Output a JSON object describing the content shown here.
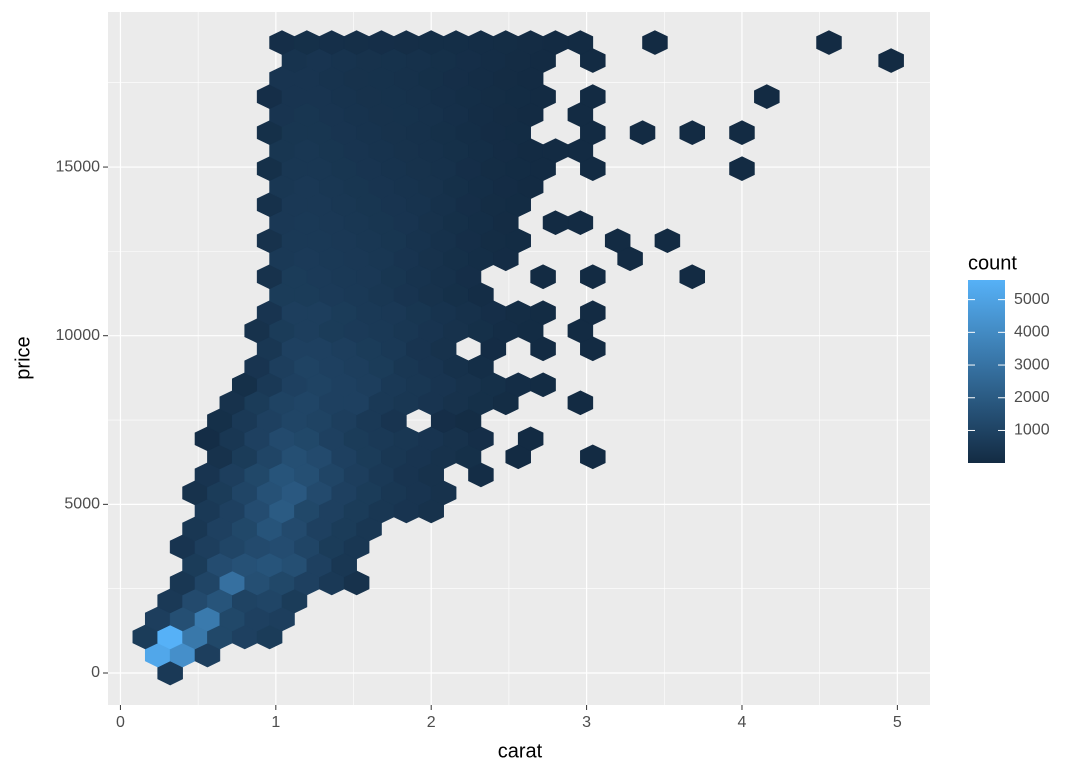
{
  "chart_data": {
    "type": "hexbin",
    "x_label": "carat",
    "y_label": "price",
    "legend_title": "count",
    "xlim": [
      -0.08,
      5.21
    ],
    "ylim": [
      -949,
      19597
    ],
    "xticks": [
      0,
      1,
      2,
      3,
      4,
      5
    ],
    "yticks": [
      0,
      5000,
      10000,
      15000
    ],
    "fill_ticks": [
      1000,
      2000,
      3000,
      4000,
      5000
    ],
    "colors": [
      "#132B43",
      "#56B1F7"
    ],
    "grid": true,
    "rows": [
      {
        "y": 0,
        "x": [
          0.32
        ],
        "values": [
          600
        ]
      },
      {
        "y": 534,
        "x": [
          0.24,
          0.4,
          0.56
        ],
        "values": [
          5200,
          4200,
          800
        ]
      },
      {
        "y": 1068,
        "x": [
          0.16,
          0.32,
          0.48,
          0.64,
          0.8,
          0.96
        ],
        "values": [
          700,
          5600,
          3200,
          1200,
          900,
          700
        ]
      },
      {
        "y": 1602,
        "x": [
          0.24,
          0.4,
          0.56,
          0.72,
          0.88,
          1.04
        ],
        "values": [
          800,
          1500,
          3300,
          1200,
          900,
          800
        ]
      },
      {
        "y": 2136,
        "x": [
          0.32,
          0.48,
          0.64,
          0.8,
          0.96,
          1.12
        ],
        "values": [
          600,
          1300,
          1700,
          1000,
          1100,
          700
        ]
      },
      {
        "y": 2670,
        "x": [
          0.4,
          0.56,
          0.72,
          0.88,
          1.04,
          1.2,
          1.36,
          1.52
        ],
        "values": [
          500,
          1100,
          2900,
          1500,
          1200,
          900,
          600,
          300
        ]
      },
      {
        "y": 3204,
        "x": [
          0.48,
          0.64,
          0.8,
          0.96,
          1.12,
          1.28,
          1.44
        ],
        "values": [
          700,
          1400,
          1600,
          1700,
          1500,
          900,
          500
        ]
      },
      {
        "y": 3738,
        "x": [
          0.4,
          0.56,
          0.72,
          0.88,
          1.04,
          1.2,
          1.36,
          1.52
        ],
        "values": [
          400,
          800,
          1100,
          1300,
          1400,
          1100,
          700,
          500
        ]
      },
      {
        "y": 4272,
        "x": [
          0.48,
          0.64,
          0.8,
          0.96,
          1.12,
          1.28,
          1.44,
          1.6
        ],
        "values": [
          500,
          900,
          1200,
          1700,
          1300,
          900,
          700,
          500
        ]
      },
      {
        "y": 4806,
        "x": [
          0.56,
          0.72,
          0.88,
          1.04,
          1.2,
          1.36,
          1.52,
          1.68,
          1.84,
          2.0
        ],
        "values": [
          600,
          900,
          1400,
          2000,
          1200,
          900,
          700,
          500,
          400,
          300
        ]
      },
      {
        "y": 5340,
        "x": [
          0.48,
          0.64,
          0.8,
          0.96,
          1.12,
          1.28,
          1.44,
          1.6,
          1.76,
          1.92,
          2.08
        ],
        "values": [
          300,
          700,
          1100,
          1600,
          1900,
          1300,
          900,
          700,
          500,
          400,
          300
        ]
      },
      {
        "y": 5874,
        "x": [
          0.56,
          0.72,
          0.88,
          1.04,
          1.2,
          1.36,
          1.52,
          1.68,
          1.84,
          2.0,
          2.32
        ],
        "values": [
          400,
          800,
          1200,
          1700,
          1500,
          1100,
          800,
          600,
          400,
          300,
          100
        ]
      },
      {
        "y": 6408,
        "x": [
          0.64,
          0.8,
          0.96,
          1.12,
          1.28,
          1.44,
          1.6,
          1.76,
          1.92,
          2.08,
          2.24,
          2.56,
          3.04
        ],
        "values": [
          300,
          700,
          1100,
          1500,
          1300,
          900,
          700,
          500,
          400,
          300,
          200,
          20,
          5
        ]
      },
      {
        "y": 6942,
        "x": [
          0.56,
          0.72,
          0.88,
          1.04,
          1.2,
          1.36,
          1.52,
          1.68,
          1.84,
          2.0,
          2.16,
          2.32,
          2.64
        ],
        "values": [
          100,
          500,
          900,
          1300,
          1200,
          900,
          700,
          600,
          500,
          400,
          300,
          150,
          20
        ]
      },
      {
        "y": 7476,
        "x": [
          0.64,
          0.8,
          0.96,
          1.12,
          1.28,
          1.44,
          1.6,
          1.76,
          2.08,
          2.24
        ],
        "values": [
          200,
          600,
          900,
          1100,
          1000,
          800,
          600,
          400,
          150,
          80
        ]
      },
      {
        "y": 8010,
        "x": [
          0.72,
          0.88,
          1.04,
          1.2,
          1.36,
          1.52,
          1.68,
          1.84,
          2.0,
          2.16,
          2.32,
          2.48,
          2.96
        ],
        "values": [
          300,
          700,
          1000,
          1100,
          900,
          900,
          600,
          500,
          400,
          300,
          200,
          80,
          10
        ]
      },
      {
        "y": 8544,
        "x": [
          0.8,
          0.96,
          1.12,
          1.28,
          1.44,
          1.6,
          1.76,
          1.92,
          2.08,
          2.24,
          2.4,
          2.56,
          2.72
        ],
        "values": [
          200,
          600,
          900,
          1000,
          900,
          800,
          600,
          500,
          400,
          300,
          200,
          100,
          30
        ]
      },
      {
        "y": 9078,
        "x": [
          0.88,
          1.04,
          1.2,
          1.36,
          1.52,
          1.68,
          1.84,
          2.0,
          2.16,
          2.32
        ],
        "values": [
          400,
          800,
          1000,
          900,
          800,
          700,
          500,
          400,
          250,
          120
        ]
      },
      {
        "y": 9612,
        "x": [
          0.96,
          1.12,
          1.28,
          1.44,
          1.6,
          1.76,
          1.92,
          2.08,
          2.4,
          2.72,
          3.04
        ],
        "values": [
          500,
          900,
          900,
          800,
          700,
          600,
          400,
          300,
          60,
          20,
          10
        ]
      },
      {
        "y": 10146,
        "x": [
          0.88,
          1.04,
          1.2,
          1.36,
          1.52,
          1.68,
          1.84,
          2.0,
          2.16,
          2.32,
          2.48,
          2.64,
          2.96
        ],
        "values": [
          300,
          700,
          800,
          700,
          650,
          600,
          500,
          400,
          300,
          200,
          100,
          40,
          10
        ]
      },
      {
        "y": 10680,
        "x": [
          0.96,
          1.12,
          1.28,
          1.44,
          1.6,
          1.76,
          1.92,
          2.08,
          2.24,
          2.4,
          2.56,
          2.72,
          3.04
        ],
        "values": [
          400,
          800,
          800,
          700,
          600,
          550,
          450,
          350,
          250,
          150,
          80,
          40,
          10
        ]
      },
      {
        "y": 11214,
        "x": [
          1.04,
          1.2,
          1.36,
          1.52,
          1.68,
          1.84,
          2.0,
          2.16,
          2.32
        ],
        "values": [
          700,
          700,
          650,
          600,
          500,
          400,
          300,
          200,
          100
        ]
      },
      {
        "y": 11748,
        "x": [
          0.96,
          1.12,
          1.28,
          1.44,
          1.6,
          1.76,
          1.92,
          2.08,
          2.24,
          2.72,
          3.04,
          3.68
        ],
        "values": [
          300,
          700,
          650,
          600,
          550,
          450,
          350,
          250,
          150,
          20,
          10,
          5
        ]
      },
      {
        "y": 12282,
        "x": [
          1.04,
          1.2,
          1.36,
          1.52,
          1.68,
          1.84,
          2.0,
          2.16,
          2.32,
          2.48,
          3.28
        ],
        "values": [
          600,
          650,
          600,
          550,
          500,
          400,
          300,
          200,
          120,
          60,
          5
        ]
      },
      {
        "y": 12816,
        "x": [
          0.96,
          1.12,
          1.28,
          1.44,
          1.6,
          1.76,
          1.92,
          2.08,
          2.24,
          2.4,
          2.56,
          3.2,
          3.52
        ],
        "values": [
          300,
          600,
          600,
          550,
          500,
          450,
          350,
          250,
          150,
          80,
          40,
          5,
          5
        ]
      },
      {
        "y": 13350,
        "x": [
          1.04,
          1.2,
          1.36,
          1.52,
          1.68,
          1.84,
          2.0,
          2.16,
          2.32,
          2.48,
          2.8,
          2.96
        ],
        "values": [
          550,
          600,
          550,
          500,
          450,
          400,
          300,
          200,
          120,
          50,
          15,
          10
        ]
      },
      {
        "y": 13884,
        "x": [
          0.96,
          1.12,
          1.28,
          1.44,
          1.6,
          1.76,
          1.92,
          2.08,
          2.24,
          2.4,
          2.56
        ],
        "values": [
          250,
          550,
          550,
          500,
          450,
          400,
          350,
          250,
          150,
          80,
          40
        ]
      },
      {
        "y": 14418,
        "x": [
          1.04,
          1.2,
          1.36,
          1.52,
          1.68,
          1.84,
          2.0,
          2.16,
          2.32,
          2.48,
          2.64
        ],
        "values": [
          500,
          550,
          500,
          450,
          400,
          350,
          300,
          200,
          120,
          60,
          20
        ]
      },
      {
        "y": 14952,
        "x": [
          0.96,
          1.12,
          1.28,
          1.44,
          1.6,
          1.76,
          1.92,
          2.08,
          2.24,
          2.4,
          2.56,
          2.72,
          3.04,
          4.0
        ],
        "values": [
          200,
          500,
          500,
          450,
          400,
          350,
          300,
          250,
          150,
          80,
          40,
          20,
          10,
          5
        ]
      },
      {
        "y": 15486,
        "x": [
          1.04,
          1.2,
          1.36,
          1.52,
          1.68,
          1.84,
          2.0,
          2.16,
          2.32,
          2.48,
          2.64,
          2.8,
          2.96
        ],
        "values": [
          450,
          500,
          450,
          400,
          350,
          300,
          250,
          200,
          120,
          60,
          20,
          15,
          10
        ]
      },
      {
        "y": 16020,
        "x": [
          0.96,
          1.12,
          1.28,
          1.44,
          1.6,
          1.76,
          1.92,
          2.08,
          2.24,
          2.4,
          2.56,
          3.04,
          3.36,
          3.68,
          4.0
        ],
        "values": [
          200,
          450,
          450,
          400,
          350,
          300,
          250,
          200,
          120,
          60,
          30,
          10,
          5,
          5,
          5
        ]
      },
      {
        "y": 16554,
        "x": [
          1.04,
          1.2,
          1.36,
          1.52,
          1.68,
          1.84,
          2.0,
          2.16,
          2.32,
          2.48,
          2.64,
          2.96
        ],
        "values": [
          400,
          450,
          400,
          350,
          300,
          280,
          250,
          180,
          100,
          50,
          20,
          10
        ]
      },
      {
        "y": 17088,
        "x": [
          0.96,
          1.12,
          1.28,
          1.44,
          1.6,
          1.76,
          1.92,
          2.08,
          2.24,
          2.4,
          2.56,
          2.72,
          3.04,
          4.16
        ],
        "values": [
          150,
          400,
          400,
          350,
          300,
          280,
          250,
          180,
          120,
          70,
          40,
          20,
          10,
          5
        ]
      },
      {
        "y": 17622,
        "x": [
          1.04,
          1.2,
          1.36,
          1.52,
          1.68,
          1.84,
          2.0,
          2.16,
          2.32,
          2.48,
          2.64
        ],
        "values": [
          400,
          400,
          350,
          300,
          280,
          250,
          200,
          150,
          100,
          50,
          20
        ]
      },
      {
        "y": 18156,
        "x": [
          1.12,
          1.28,
          1.44,
          1.6,
          1.76,
          1.92,
          2.08,
          2.24,
          2.4,
          2.56,
          2.72,
          3.04,
          4.96
        ],
        "values": [
          350,
          400,
          350,
          300,
          280,
          250,
          200,
          150,
          100,
          50,
          20,
          10,
          5
        ]
      },
      {
        "y": 18690,
        "x": [
          1.04,
          1.2,
          1.36,
          1.52,
          1.68,
          1.84,
          2.0,
          2.16,
          2.32,
          2.48,
          2.64,
          2.8,
          2.96,
          3.44,
          4.56
        ],
        "values": [
          150,
          200,
          180,
          160,
          150,
          140,
          130,
          120,
          100,
          80,
          50,
          20,
          10,
          5,
          5
        ]
      }
    ]
  }
}
